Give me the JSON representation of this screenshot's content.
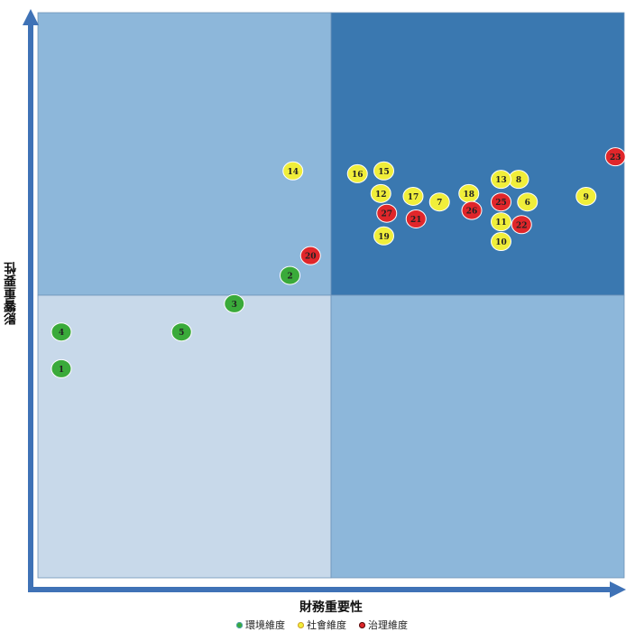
{
  "chart_data": {
    "type": "scatter",
    "xlabel": "財務重要性",
    "ylabel": "影響重要性",
    "xlim": [
      0,
      100
    ],
    "ylim": [
      0,
      100
    ],
    "quadrants": {
      "bottom_left": "#c8d9ea",
      "top_left": "#8db7da",
      "bottom_right": "#8db7da",
      "top_right": "#3a78b0"
    },
    "legend": [
      {
        "name": "環境維度",
        "color": "#3aaa3a"
      },
      {
        "name": "社會維度",
        "color": "#f0ee3a"
      },
      {
        "name": "治理維度",
        "color": "#e0262a"
      }
    ],
    "series": [
      {
        "name": "環境維度",
        "color": "#3aaa3a",
        "points": [
          {
            "label": "1",
            "x": 4,
            "y": 37
          },
          {
            "label": "2",
            "x": 43,
            "y": 53.5
          },
          {
            "label": "3",
            "x": 33.5,
            "y": 48.5
          },
          {
            "label": "4",
            "x": 4,
            "y": 43.5
          },
          {
            "label": "5",
            "x": 24.5,
            "y": 43.5
          }
        ]
      },
      {
        "name": "社會維度",
        "color": "#f0ee3a",
        "points": [
          {
            "label": "6",
            "x": 83.5,
            "y": 66.5
          },
          {
            "label": "7",
            "x": 68.5,
            "y": 66.5
          },
          {
            "label": "8",
            "x": 82,
            "y": 70.5
          },
          {
            "label": "9",
            "x": 93.5,
            "y": 67.5
          },
          {
            "label": "10",
            "x": 79,
            "y": 59.5
          },
          {
            "label": "11",
            "x": 79,
            "y": 63
          },
          {
            "label": "12",
            "x": 58.5,
            "y": 68
          },
          {
            "label": "13",
            "x": 79,
            "y": 70.5
          },
          {
            "label": "14",
            "x": 43.5,
            "y": 72
          },
          {
            "label": "15",
            "x": 59,
            "y": 72
          },
          {
            "label": "16",
            "x": 54.5,
            "y": 71.5
          },
          {
            "label": "17",
            "x": 64,
            "y": 67.5
          },
          {
            "label": "18",
            "x": 73.5,
            "y": 68
          },
          {
            "label": "19",
            "x": 59,
            "y": 60.5
          }
        ]
      },
      {
        "name": "治理維度",
        "color": "#e0262a",
        "points": [
          {
            "label": "20",
            "x": 46.5,
            "y": 57
          },
          {
            "label": "21",
            "x": 64.5,
            "y": 63.5
          },
          {
            "label": "22",
            "x": 82.5,
            "y": 62.5
          },
          {
            "label": "23",
            "x": 98.5,
            "y": 74.5
          },
          {
            "label": "25",
            "x": 79,
            "y": 66.5
          },
          {
            "label": "26",
            "x": 74,
            "y": 65
          },
          {
            "label": "27",
            "x": 59.5,
            "y": 64.5
          }
        ]
      }
    ]
  }
}
